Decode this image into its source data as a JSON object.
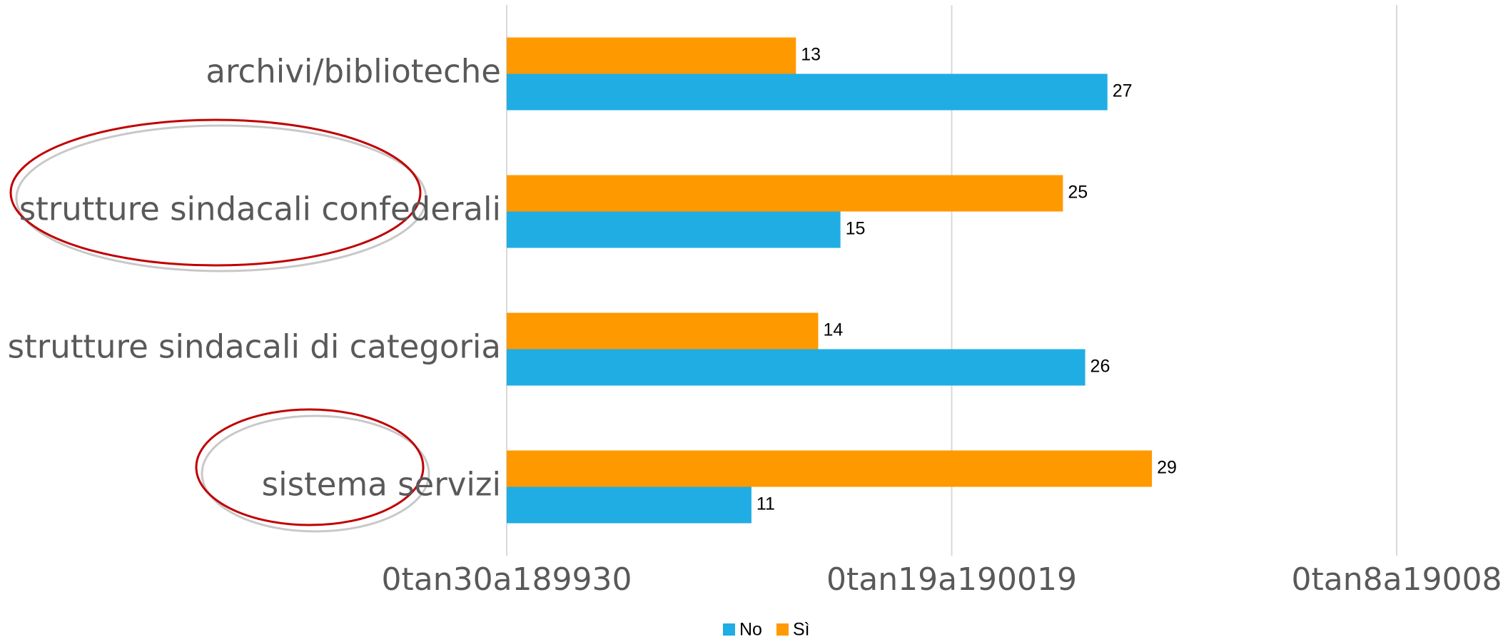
{
  "chart_data": {
    "type": "bar",
    "orientation": "horizontal",
    "categories": [
      "archivi/biblioteche",
      "strutture sindacali confederali",
      "strutture sindacali di categoria",
      "sistema servizi"
    ],
    "series": [
      {
        "name": "No",
        "color": "#1fade4",
        "values": [
          27,
          15,
          26,
          11
        ]
      },
      {
        "name": "Sì",
        "color": "#ff9900",
        "values": [
          13,
          25,
          14,
          29
        ]
      }
    ],
    "xlim": [
      0,
      40
    ],
    "xticks": [
      {
        "value": 0,
        "label": "0tan30a189930"
      },
      {
        "value": 20,
        "label": "0tan19a190019"
      },
      {
        "value": 40,
        "label": "0tan8a19008"
      }
    ],
    "grid": true,
    "legend": "bottom"
  }
}
